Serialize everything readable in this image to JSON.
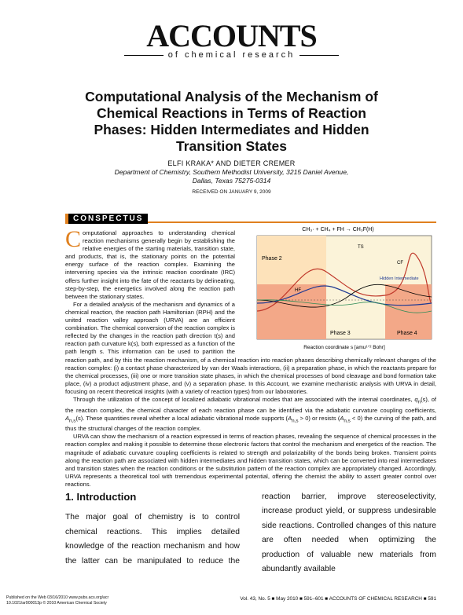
{
  "header": {
    "journal": "ACCOUNTS",
    "subtitle": "of chemical research"
  },
  "article": {
    "title": "Computational Analysis of the Mechanism of Chemical Reactions in Terms of Reaction Phases: Hidden Intermediates and Hidden Transition States",
    "authors": "ELFI KRAKA* AND DIETER CREMER",
    "affiliation": [
      "Department of Chemistry, Southern Methodist University, 3215 Daniel Avenue,",
      "Dallas, Texas 75275-0314"
    ],
    "received": "RECEIVED ON JANUARY 9, 2009"
  },
  "conspectus": {
    "heading": "CONSPECTUS",
    "dropcap": "C",
    "p1": "omputational approaches to understanding chemical reaction mechanisms generally begin by establishing the relative energies of the starting materials, transition state, and products, that is, the stationary points on the potential energy surface of the reaction complex. Examining the intervening species via the intrinsic reaction coordinate (IRC) offers further insight into the fate of the reactants by delineating, step-by-step, the energetics involved along the reaction path between the stationary states.",
    "p2": "For a detailed analysis of the mechanism and dynamics of a chemical reaction, the reaction path Hamiltonian (RPH) and the united reaction valley approach (URVA) are an efficient combination. The chemical conversion of the reaction complex is reflected by the changes in the reaction path direction t(s) and reaction path curvature k(s), both expressed as a function of the path length s. This information can be used to partition the reaction path, and by this the reaction mechanism, of a chemical reaction into reaction phases describing chemically relevant changes of the reaction complex: (i) a contact phase characterized by van der Waals interactions, (ii) a preparation phase, in which the reactants prepare for the chemical processes, (iii) one or more transition state phases, in which the chemical processes of bond cleavage and bond formation take place, (iv) a product adjustment phase, and (v) a separation phase. In this Account, we examine mechanistic analysis with URVA in detail, focusing on recent theoretical insights (with a variety of reaction types) from our laboratories.",
    "p3": [
      "Through the utilization of the concept of localized adiabatic vibrational modes that are associated with the internal coordinates, ",
      "q",
      "n",
      "(s), of the reaction complex, the chemical character of each reaction phase can be identified via the adiabatic curvature coupling coefficients, ",
      "A",
      "n,s",
      "(s). These quantities reveal whether a local adiabatic vibrational mode supports (",
      "A",
      "n,s",
      " > 0) or resists (",
      "A",
      "n,s",
      " < 0) the curving of the path, and thus the structural changes of the reaction complex."
    ],
    "p4": "URVA can show the mechanism of a reaction expressed in terms of reaction phases, revealing the sequence of chemical processes in the reaction complex and making it possible to determine those electronic factors that control the mechanism and energetics of the reaction. The magnitude of adiabatic curvature coupling coefficients is related to strength and polarizability of the bonds being broken. Transient points along the reaction path are associated with hidden intermediates and hidden transition states, which can be converted into real intermediates and transition states when the reaction conditions or the substitution pattern of the reaction complex are appropriately changed. Accordingly, URVA represents a theoretical tool with tremendous experimental potential, offering the chemist the ability to assert greater control over reactions."
  },
  "figure": {
    "equation": "CH₃· + CH₄ + FH → CH₃F(H)",
    "labels": [
      "Phase 2",
      "Phase 3",
      "Phase 4",
      "Hidden Intermediate",
      "CF",
      "HF",
      "TS"
    ],
    "xlabel": "Reaction coordinate s [amu¹ᐟ² Bohr]"
  },
  "introduction": {
    "heading": "1. Introduction",
    "text": "The major goal of chemistry is to control chemical reactions. This implies detailed knowledge of the reaction mechanism and how the latter can be manipulated to reduce the reaction barrier, improve stereoselectivity, increase product yield, or suppress undesirable side reactions. Controlled changes of this nature are often needed when optimizing the production of valuable new materials from abundantly available"
  },
  "footer": {
    "left": [
      "Published on the Web 03/16/2010   www.pubs.acs.org/acr",
      "10.1021/ar900013p   © 2010 American Chemical Society"
    ],
    "right": "Vol. 43, No. 5 ■ May 2010 ■ 591–601 ■ ACCOUNTS OF CHEMICAL RESEARCH ■ 591"
  }
}
